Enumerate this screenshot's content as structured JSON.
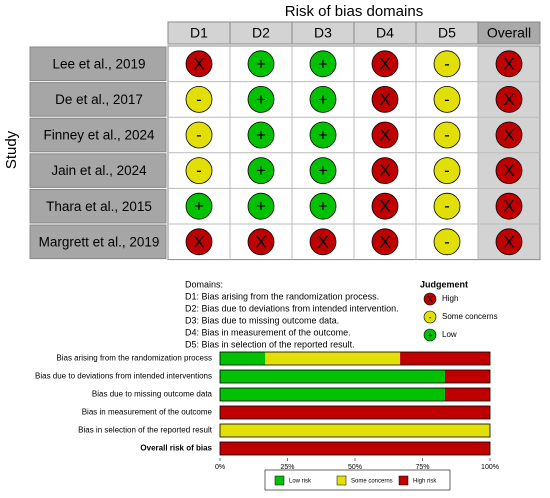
{
  "traffic_light": {
    "title": "Risk of bias domains",
    "y_label": "Study",
    "columns": [
      "D1",
      "D2",
      "D3",
      "D4",
      "D5",
      "Overall"
    ],
    "rows": [
      {
        "study": "Lee et al., 2019",
        "judgements": [
          "X",
          "+",
          "+",
          "X",
          "-",
          "X"
        ]
      },
      {
        "study": "De et al., 2017",
        "judgements": [
          "-",
          "+",
          "+",
          "X",
          "-",
          "X"
        ]
      },
      {
        "study": "Finney et al., 2024",
        "judgements": [
          "-",
          "+",
          "+",
          "X",
          "-",
          "X"
        ]
      },
      {
        "study": "Jain et al., 2024",
        "judgements": [
          "-",
          "+",
          "+",
          "X",
          "-",
          "X"
        ]
      },
      {
        "study": "Thara et al., 2015",
        "judgements": [
          "+",
          "+",
          "+",
          "X",
          "-",
          "X"
        ]
      },
      {
        "study": "Margrett et al., 2019",
        "judgements": [
          "X",
          "X",
          "X",
          "X",
          "-",
          "X"
        ]
      }
    ]
  },
  "legend": {
    "domains_title": "Domains:",
    "domains": [
      "D1: Bias arising from the randomization process.",
      "D2: Bias due to deviations from intended intervention.",
      "D3: Bias due to missing outcome data.",
      "D4: Bias in measurement of the outcome.",
      "D5: Bias in selection of the reported result."
    ],
    "judgement_title": "Judgement",
    "judgements": [
      {
        "label": "High",
        "symbol": "X",
        "color": "#c00000"
      },
      {
        "label": "Some concerns",
        "symbol": "-",
        "color": "#e2df07"
      },
      {
        "label": "Low",
        "symbol": "+",
        "color": "#02c100"
      }
    ]
  },
  "chart_data": {
    "type": "stacked-barh",
    "categories": [
      "Bias arising from the randomization process",
      "Bias due to deviations from intended interventions",
      "Bias due to missing outcome data",
      "Bias in measurement of the outcome",
      "Bias in selection of the reported result",
      "Overall risk of bias"
    ],
    "series": [
      {
        "name": "Low risk",
        "color": "#02c100",
        "values": [
          16.7,
          83.3,
          83.3,
          0,
          0,
          0
        ]
      },
      {
        "name": "Some concerns",
        "color": "#e2df07",
        "values": [
          50,
          0,
          0,
          0,
          100,
          0
        ]
      },
      {
        "name": "High risk",
        "color": "#c00000",
        "values": [
          33.3,
          16.7,
          16.7,
          100,
          0,
          100
        ]
      }
    ],
    "xlim": [
      0,
      100
    ],
    "xticks": [
      {
        "value": 0,
        "label": "0%"
      },
      {
        "value": 25,
        "label": "25%"
      },
      {
        "value": 50,
        "label": "50%"
      },
      {
        "value": 75,
        "label": "75%"
      },
      {
        "value": 100,
        "label": "100%"
      }
    ]
  }
}
